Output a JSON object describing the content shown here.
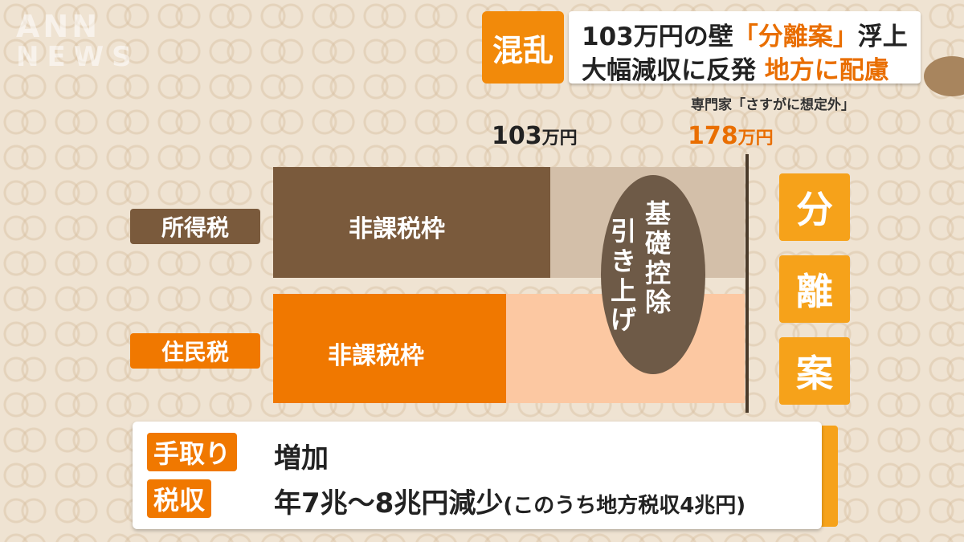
{
  "watermark": {
    "line1": "ANN",
    "line2": "NEWS"
  },
  "header": {
    "tag": "混乱",
    "line1_a": "103万円の壁",
    "line1_b": "「分離案」",
    "line1_c": "浮上",
    "line2_a": "大幅減収に反発",
    "line2_b": "地方に配慮"
  },
  "subtitle": "専門家「さすがに想定外」",
  "ticks": {
    "t1_num": "103",
    "t1_unit": "万円",
    "t2_num": "178",
    "t2_unit": "万円"
  },
  "rows": {
    "income_tax_label": "所得税",
    "resident_tax_label": "住民税",
    "bar_text_income": "非課税枠",
    "bar_text_resident": "非課税枠"
  },
  "ellipse": {
    "col_right": "基礎控除",
    "col_left": "引き上げ"
  },
  "side": {
    "c1": "分",
    "c2": "離",
    "c3": "案"
  },
  "bottom": {
    "tag1": "手取り",
    "text1": "増加",
    "tag2": "税収",
    "text2": "年7兆〜8兆円減少",
    "note2": "(このうち地方税収4兆円)"
  },
  "colors": {
    "orange": "#f07800",
    "brown": "#7a5a3c",
    "amber": "#f6a21a"
  }
}
